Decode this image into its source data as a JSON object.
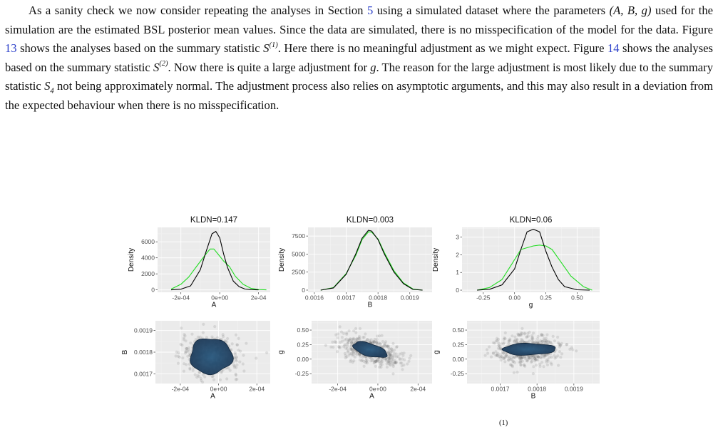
{
  "paragraph": {
    "t1": "As a sanity check we now consider repeating the analyses in Section ",
    "ref_section": "5",
    "t2": " using a simulated dataset where the parameters ",
    "params": "(A, B, g)",
    "t3": " used for the simulation are the estimated BSL posterior mean values. Since the data are simulated, there is no misspecification of the model for the data. Figure ",
    "ref_fig13": "13",
    "t4": " shows the analyses based on the summary statistic ",
    "S": "S",
    "sup1": "(1)",
    "t5": ". Here there is no meaningful adjustment as we might expect. Figure ",
    "ref_fig14": "14",
    "t6": " shows the analyses based on the summary statistic ",
    "sup2": "(2)",
    "t7": ". Now there is quite a large adjustment for ",
    "g": "g",
    "t8": ". The reason for the large adjustment is most likely due to the summary statistic ",
    "sub4": "4",
    "t9": " not being approximately normal. The adjustment process also relies on asymptotic arguments, and this may also result in a deviation from the expected behaviour when there is no misspecification."
  },
  "caption_fragment": "(1)",
  "colors": {
    "unadjusted": "#000000",
    "adjusted": "#22dd22",
    "panel_bg": "#ebebeb",
    "grid": "#ffffff",
    "blob": "#1d3b5a",
    "points": "#6b6b6b",
    "link": "#2a3ec9"
  },
  "chart_data": [
    {
      "type": "line",
      "title": "KLDN=0.147",
      "xlabel": "A",
      "ylabel": "Density",
      "xlim": [
        -0.00032,
        0.00026
      ],
      "ylim": [
        -300,
        7800
      ],
      "xticks": [
        -0.0002,
        0,
        0.0002
      ],
      "xtick_labels": [
        "-2e-04",
        "0e+00",
        "2e-04"
      ],
      "yticks": [
        0,
        2000,
        4000,
        6000
      ],
      "ytick_labels": [
        "0",
        "2000",
        "4000",
        "6000"
      ],
      "series": [
        {
          "color": "black",
          "x": [
            -0.00025,
            -0.0002,
            -0.00015,
            -0.0001,
            -7e-05,
            -4e-05,
            -2e-05,
            0,
            2e-05,
            4e-05,
            7e-05,
            0.0001,
            0.00013,
            0.00016,
            0.0002
          ],
          "y": [
            0,
            80,
            500,
            2500,
            4800,
            7000,
            7300,
            6500,
            4500,
            2800,
            1100,
            400,
            100,
            30,
            0
          ]
        },
        {
          "color": "green",
          "x": [
            -0.00025,
            -0.0002,
            -0.00016,
            -0.00012,
            -8e-05,
            -5e-05,
            -3e-05,
            0,
            2e-05,
            5e-05,
            8e-05,
            0.00012,
            0.00016,
            0.0002,
            0.00024
          ],
          "y": [
            100,
            700,
            1600,
            2900,
            4200,
            5100,
            5100,
            4200,
            3600,
            2900,
            1700,
            700,
            200,
            40,
            0
          ]
        }
      ]
    },
    {
      "type": "line",
      "title": "KLDN=0.003",
      "xlabel": "B",
      "ylabel": "Density",
      "xlim": [
        0.00158,
        0.00197
      ],
      "ylim": [
        -300,
        8700
      ],
      "xticks": [
        0.0016,
        0.0017,
        0.0018,
        0.0019
      ],
      "xtick_labels": [
        "0.0016",
        "0.0017",
        "0.0018",
        "0.0019"
      ],
      "yticks": [
        0,
        2500,
        5000,
        7500
      ],
      "ytick_labels": [
        "0",
        "2500",
        "5000",
        "7500"
      ],
      "series": [
        {
          "color": "black",
          "x": [
            0.00162,
            0.00166,
            0.0017,
            0.00173,
            0.00175,
            0.00177,
            0.00178,
            0.0018,
            0.00182,
            0.00185,
            0.00188,
            0.00191,
            0.00194
          ],
          "y": [
            0,
            300,
            2200,
            5000,
            7200,
            8300,
            8200,
            7000,
            5000,
            2500,
            900,
            100,
            0
          ]
        },
        {
          "color": "green",
          "x": [
            0.00162,
            0.00166,
            0.0017,
            0.00173,
            0.00175,
            0.00177,
            0.00178,
            0.0018,
            0.00182,
            0.00185,
            0.00188,
            0.00191,
            0.00194
          ],
          "y": [
            0,
            350,
            2300,
            4800,
            7000,
            8100,
            8050,
            7100,
            5200,
            2700,
            1000,
            150,
            0
          ]
        }
      ]
    },
    {
      "type": "line",
      "title": "KLDN=0.06",
      "xlabel": "g",
      "ylabel": "Density",
      "xlim": [
        -0.42,
        0.68
      ],
      "ylim": [
        -0.12,
        3.55
      ],
      "xticks": [
        -0.25,
        0,
        0.25,
        0.5
      ],
      "xtick_labels": [
        "-0.25",
        "0.00",
        "0.25",
        "0.50"
      ],
      "yticks": [
        0,
        1,
        2,
        3
      ],
      "ytick_labels": [
        "0",
        "1",
        "2",
        "3"
      ],
      "series": [
        {
          "color": "black",
          "x": [
            -0.3,
            -0.2,
            -0.1,
            0,
            0.05,
            0.1,
            0.15,
            0.2,
            0.25,
            0.3,
            0.35,
            0.4,
            0.5,
            0.6
          ],
          "y": [
            0,
            0.05,
            0.3,
            1.2,
            2.3,
            3.3,
            3.45,
            3.3,
            2.2,
            1.3,
            0.6,
            0.2,
            0.02,
            0
          ]
        },
        {
          "color": "green",
          "x": [
            -0.3,
            -0.2,
            -0.1,
            -0.02,
            0.05,
            0.1,
            0.15,
            0.2,
            0.25,
            0.3,
            0.35,
            0.45,
            0.55,
            0.62
          ],
          "y": [
            0,
            0.15,
            0.6,
            1.5,
            2.3,
            2.4,
            2.5,
            2.55,
            2.5,
            2.3,
            1.8,
            0.8,
            0.2,
            0
          ]
        }
      ]
    },
    {
      "type": "scatter",
      "xlabel": "A",
      "ylabel": "B",
      "xlim": [
        -0.00033,
        0.00027
      ],
      "ylim": [
        0.001655,
        0.001945
      ],
      "xticks": [
        -0.0002,
        0,
        0.0002
      ],
      "xtick_labels": [
        "-2e-04",
        "0e+00",
        "2e-04"
      ],
      "yticks": [
        0.0017,
        0.0018,
        0.0019
      ],
      "ytick_labels": [
        "0.0017",
        "0.0018",
        "0.0019"
      ],
      "cloud": {
        "cx": -4e-05,
        "cy": 0.00178,
        "sx": 7.5e-05,
        "sy": 4.5e-05,
        "rho": 0.0
      },
      "blob": {
        "cx": -4e-05,
        "cy": 0.001782,
        "rx": 0.00011,
        "ry": 8.2e-05
      }
    },
    {
      "type": "scatter",
      "xlabel": "A",
      "ylabel": "g",
      "xlim": [
        -0.00033,
        0.00027
      ],
      "ylim": [
        -0.42,
        0.66
      ],
      "xticks": [
        -0.0002,
        0,
        0.0002
      ],
      "xtick_labels": [
        "-2e-04",
        "0e+00",
        "2e-04"
      ],
      "yticks": [
        -0.25,
        0,
        0.25,
        0.5
      ],
      "ytick_labels": [
        "-0.25",
        "0.00",
        "0.25",
        "0.50"
      ],
      "cloud": {
        "cx": -4e-05,
        "cy": 0.15,
        "sx": 7.5e-05,
        "sy": 0.13,
        "rho": -0.55
      },
      "blob": {
        "cx": -4e-05,
        "cy": 0.16,
        "rx": 8.5e-05,
        "ry": 0.135,
        "rho": -0.55
      }
    },
    {
      "type": "scatter",
      "xlabel": "B",
      "ylabel": "g",
      "xlim": [
        0.00161,
        0.00197
      ],
      "ylim": [
        -0.42,
        0.66
      ],
      "xticks": [
        0.0017,
        0.0018,
        0.0019
      ],
      "xtick_labels": [
        "0.0017",
        "0.0018",
        "0.0019"
      ],
      "yticks": [
        -0.25,
        0,
        0.25,
        0.5
      ],
      "ytick_labels": [
        "-0.25",
        "0.00",
        "0.25",
        "0.50"
      ],
      "cloud": {
        "cx": 0.001775,
        "cy": 0.16,
        "sx": 4.5e-05,
        "sy": 0.13,
        "rho": 0.05
      },
      "blob": {
        "cx": 0.001778,
        "cy": 0.17,
        "rx": 7.2e-05,
        "ry": 0.1,
        "rho": 0.05
      }
    }
  ]
}
